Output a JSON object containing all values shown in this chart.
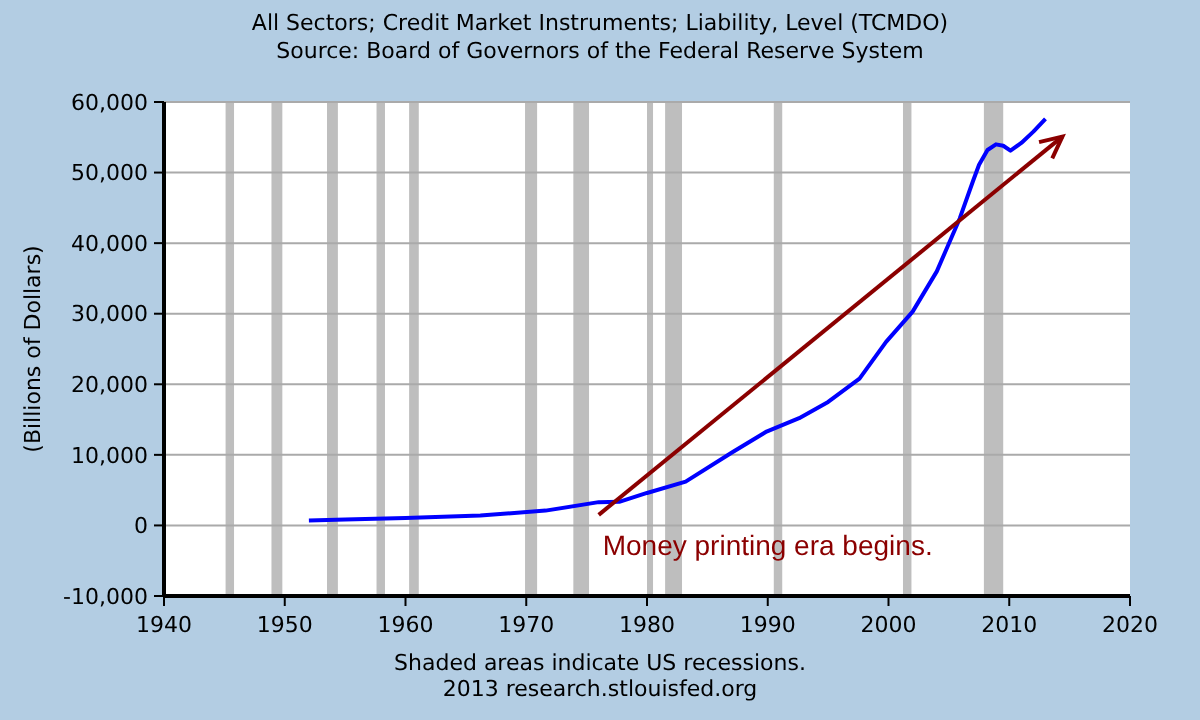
{
  "chart_data": {
    "type": "line",
    "title": "All Sectors; Credit Market Instruments; Liability, Level (TCMDO)",
    "subtitle": "Source: Board of Governors of the Federal Reserve System",
    "ylabel": "(Billions of Dollars)",
    "x": [
      1952,
      1955,
      1960,
      1966.2,
      1971.6,
      1976,
      1977.7,
      1980,
      1983.2,
      1987.1,
      1989.9,
      1992.6,
      1995,
      1997.6,
      1999.8,
      2002,
      2004,
      2005.9,
      2007,
      2007.5,
      2008.2,
      2008.9,
      2009.5,
      2010.1,
      2011,
      2012,
      2013
    ],
    "series": [
      {
        "color": "#0000ff",
        "values": [
          700,
          850,
          1050,
          1400,
          2100,
          3300,
          3350,
          4600,
          6200,
          10400,
          13300,
          15200,
          17500,
          20800,
          26000,
          30300,
          36000,
          43500,
          48800,
          51100,
          53200,
          54000,
          53800,
          53100,
          54200,
          55800,
          57600
        ]
      }
    ],
    "xlim": [
      1940,
      2020
    ],
    "xticks": [
      1940,
      1950,
      1960,
      1970,
      1980,
      1990,
      2000,
      2010,
      2020
    ],
    "ylim": [
      -10000,
      60000
    ],
    "yticks": [
      {
        "value": -10000,
        "label": "-10,000"
      },
      {
        "value": 0,
        "label": "0"
      },
      {
        "value": 10000,
        "label": "10,000"
      },
      {
        "value": 20000,
        "label": "20,000"
      },
      {
        "value": 30000,
        "label": "30,000"
      },
      {
        "value": 40000,
        "label": "40,000"
      },
      {
        "value": 50000,
        "label": "50,000"
      },
      {
        "value": 60000,
        "label": "60,000"
      }
    ],
    "grid": "y",
    "line_style": "solid",
    "bands": [
      {
        "axis": "x",
        "from": 1945.1,
        "to": 1945.8,
        "color": "#bebebe"
      },
      {
        "axis": "x",
        "from": 1948.9,
        "to": 1949.8,
        "color": "#bebebe"
      },
      {
        "axis": "x",
        "from": 1953.5,
        "to": 1954.4,
        "color": "#bebebe"
      },
      {
        "axis": "x",
        "from": 1957.6,
        "to": 1958.3,
        "color": "#bebebe"
      },
      {
        "axis": "x",
        "from": 1960.3,
        "to": 1961.1,
        "color": "#bebebe"
      },
      {
        "axis": "x",
        "from": 1969.9,
        "to": 1970.9,
        "color": "#bebebe"
      },
      {
        "axis": "x",
        "from": 1973.9,
        "to": 1975.2,
        "color": "#bebebe"
      },
      {
        "axis": "x",
        "from": 1980.0,
        "to": 1980.5,
        "color": "#bebebe"
      },
      {
        "axis": "x",
        "from": 1981.5,
        "to": 1982.9,
        "color": "#bebebe"
      },
      {
        "axis": "x",
        "from": 1990.5,
        "to": 1991.2,
        "color": "#bebebe"
      },
      {
        "axis": "x",
        "from": 2001.2,
        "to": 2001.9,
        "color": "#bebebe"
      },
      {
        "axis": "x",
        "from": 2007.9,
        "to": 2009.5,
        "color": "#bebebe"
      }
    ],
    "annotations": [
      {
        "text": "Money printing era begins.",
        "x": 1976,
        "y": 1500
      },
      "Shaded areas indicate US recessions.",
      "2013 research.stlouisfed.org"
    ]
  }
}
